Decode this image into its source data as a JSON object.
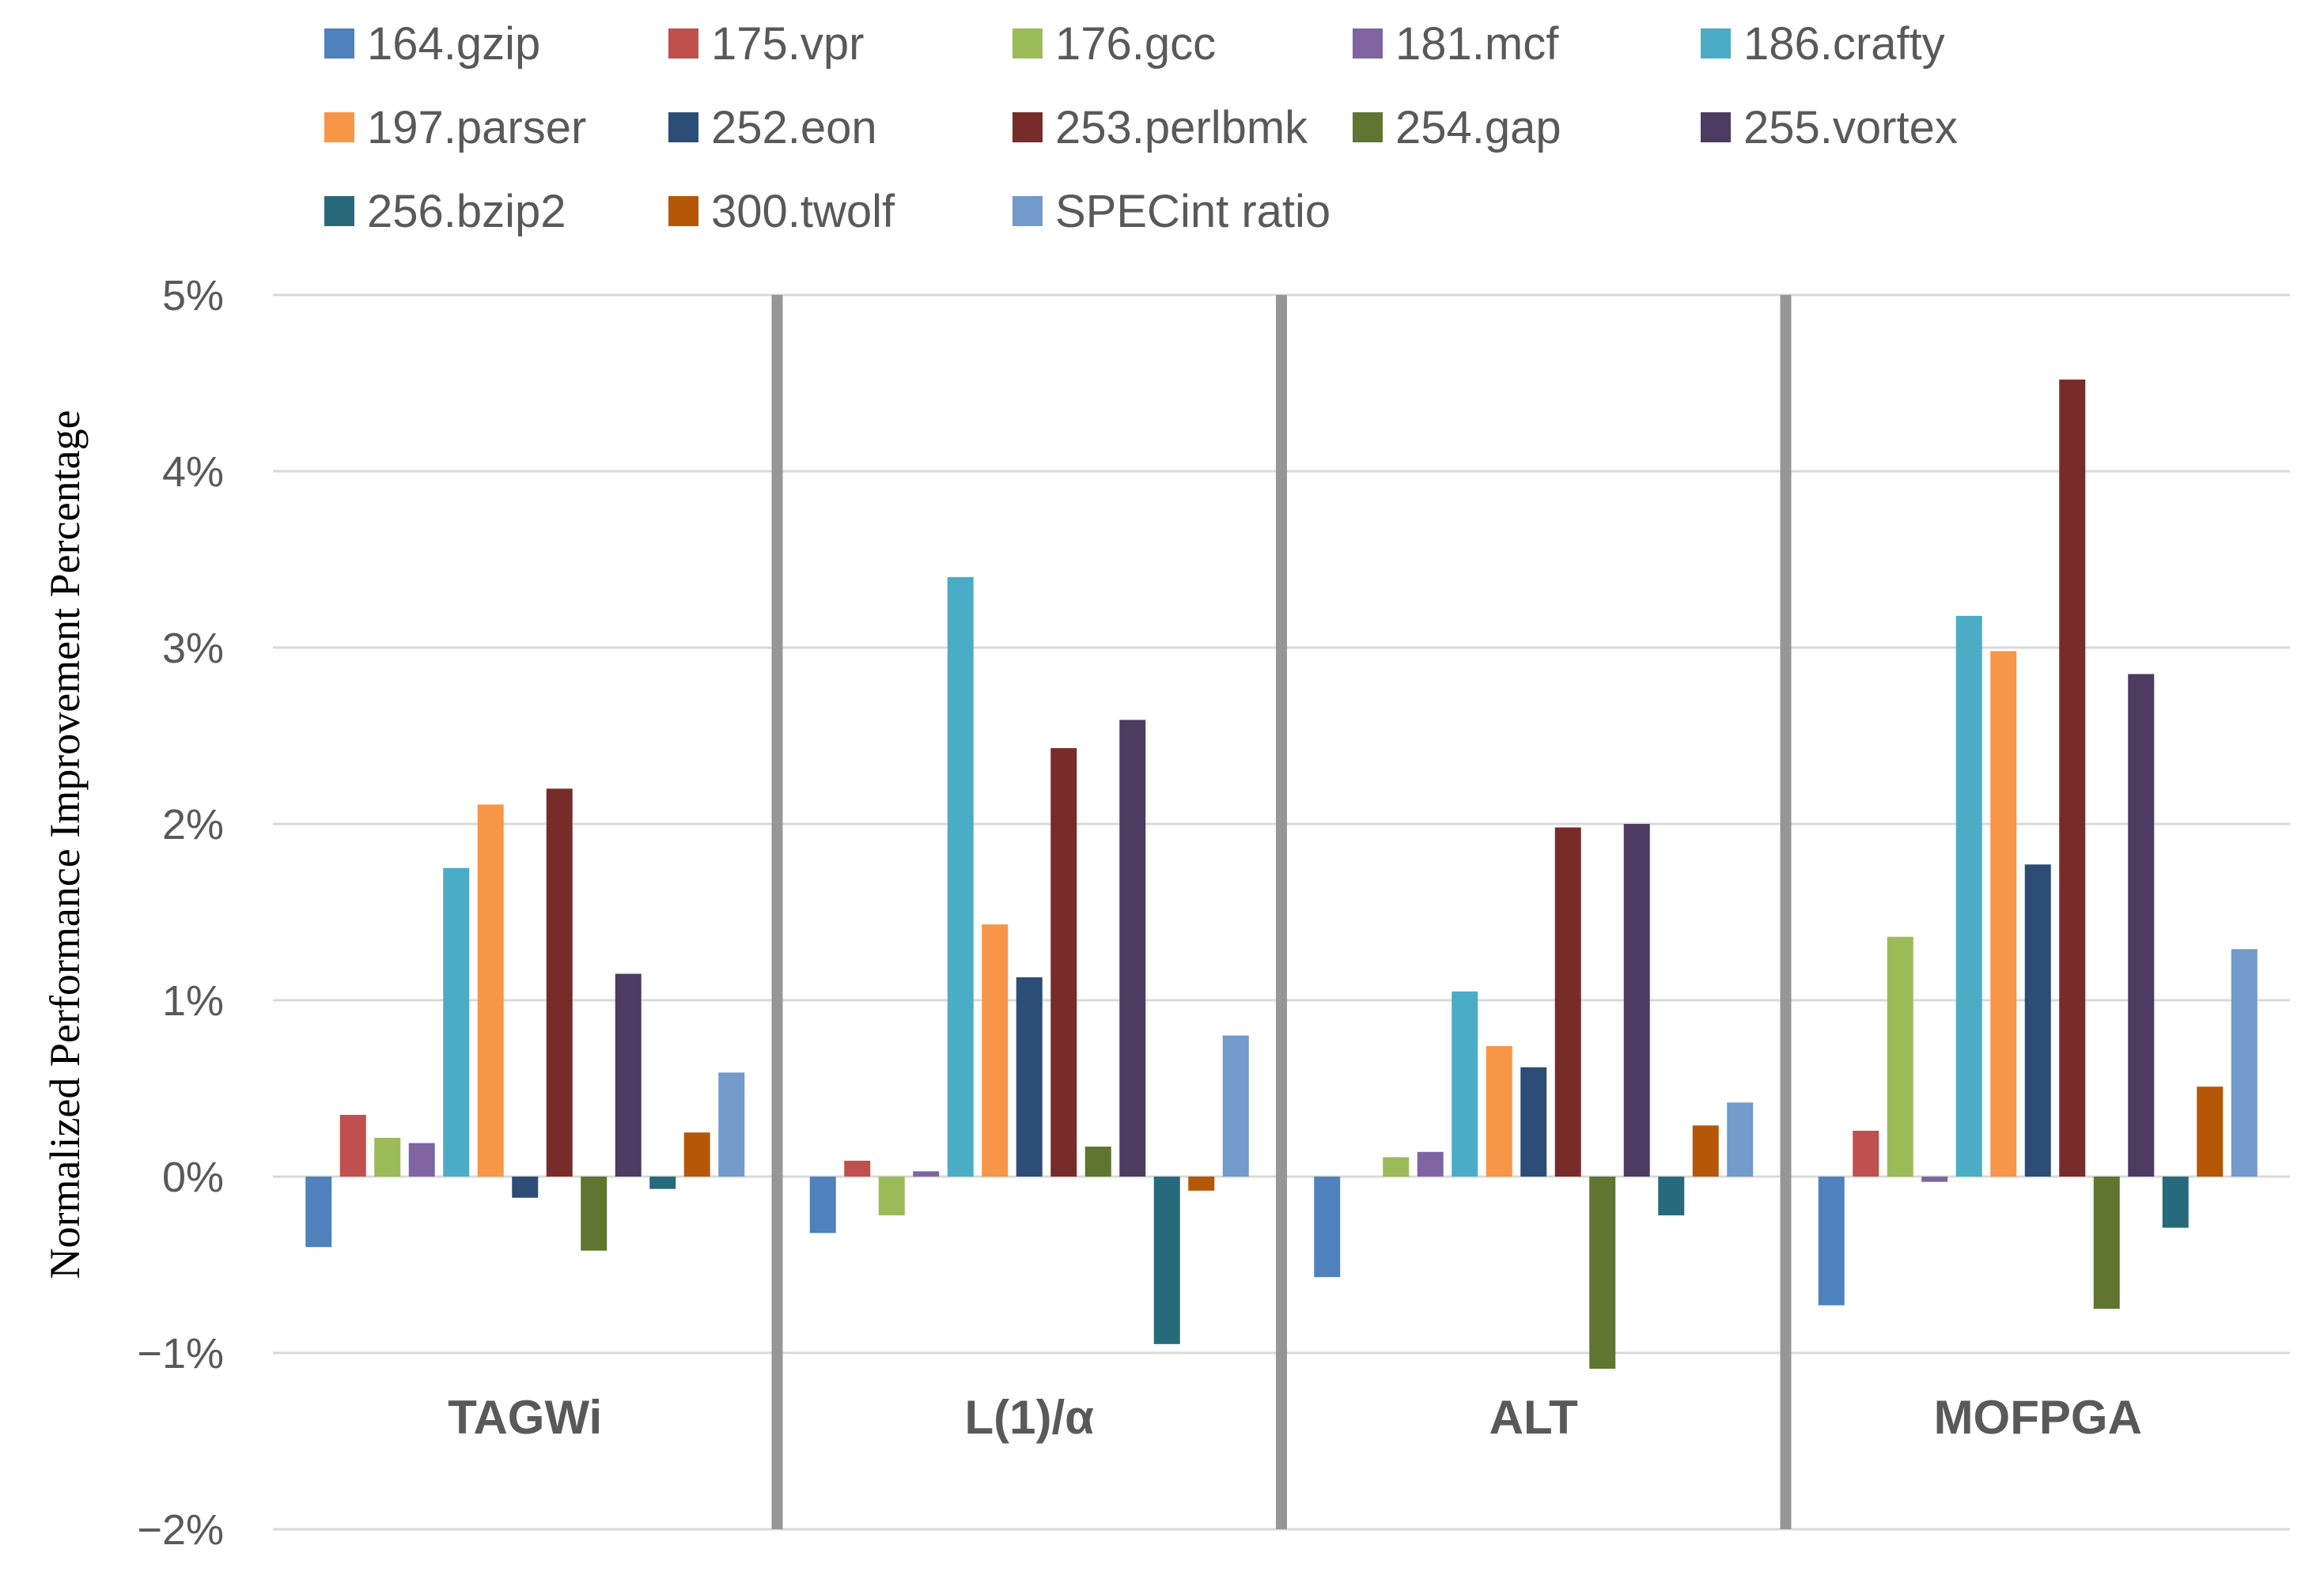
{
  "chart_data": {
    "type": "bar",
    "title": "",
    "xlabel": "",
    "ylabel": "Normalized Performance Improvement Percentage",
    "ylim": [
      -2,
      5
    ],
    "yticks": [
      -2,
      -1,
      0,
      1,
      2,
      3,
      4,
      5
    ],
    "ytick_labels": [
      "−2%",
      "−1%",
      "0%",
      "1%",
      "2%",
      "3%",
      "4%",
      "5%"
    ],
    "categories": [
      "TAGWi",
      "L(1)/α",
      "ALT",
      "MOFPGA"
    ],
    "grid": true,
    "legend_position": "top",
    "series": [
      {
        "name": "164.gzip",
        "color": "#4F81BD",
        "values": [
          -0.4,
          -0.32,
          -0.57,
          -0.73
        ]
      },
      {
        "name": "175.vpr",
        "color": "#C0504D",
        "values": [
          0.35,
          0.09,
          0.0,
          0.26
        ]
      },
      {
        "name": "176.gcc",
        "color": "#9BBB59",
        "values": [
          0.22,
          -0.22,
          0.11,
          1.36
        ]
      },
      {
        "name": "181.mcf",
        "color": "#8064A2",
        "values": [
          0.19,
          0.03,
          0.14,
          -0.03
        ]
      },
      {
        "name": "186.crafty",
        "color": "#4BACC6",
        "values": [
          1.75,
          3.4,
          1.05,
          3.18
        ]
      },
      {
        "name": "197.parser",
        "color": "#F79646",
        "values": [
          2.11,
          1.43,
          0.74,
          2.98
        ]
      },
      {
        "name": "252.eon",
        "color": "#2C4D75",
        "values": [
          -0.12,
          1.13,
          0.62,
          1.77
        ]
      },
      {
        "name": "253.perlbmk",
        "color": "#772C2A",
        "values": [
          2.2,
          2.43,
          1.98,
          4.52
        ]
      },
      {
        "name": "254.gap",
        "color": "#5F7530",
        "values": [
          -0.42,
          0.17,
          -1.09,
          -0.75
        ]
      },
      {
        "name": "255.vortex",
        "color": "#4D3B62",
        "values": [
          1.15,
          2.59,
          2.0,
          2.85
        ]
      },
      {
        "name": "256.bzip2",
        "color": "#276A7C",
        "values": [
          -0.07,
          -0.95,
          -0.22,
          -0.29
        ]
      },
      {
        "name": "300.twolf",
        "color": "#B65708",
        "values": [
          0.25,
          -0.08,
          0.29,
          0.51
        ]
      },
      {
        "name": "SPECint ratio",
        "color": "#729ACA",
        "values": [
          0.59,
          0.8,
          0.42,
          1.29
        ]
      }
    ]
  }
}
